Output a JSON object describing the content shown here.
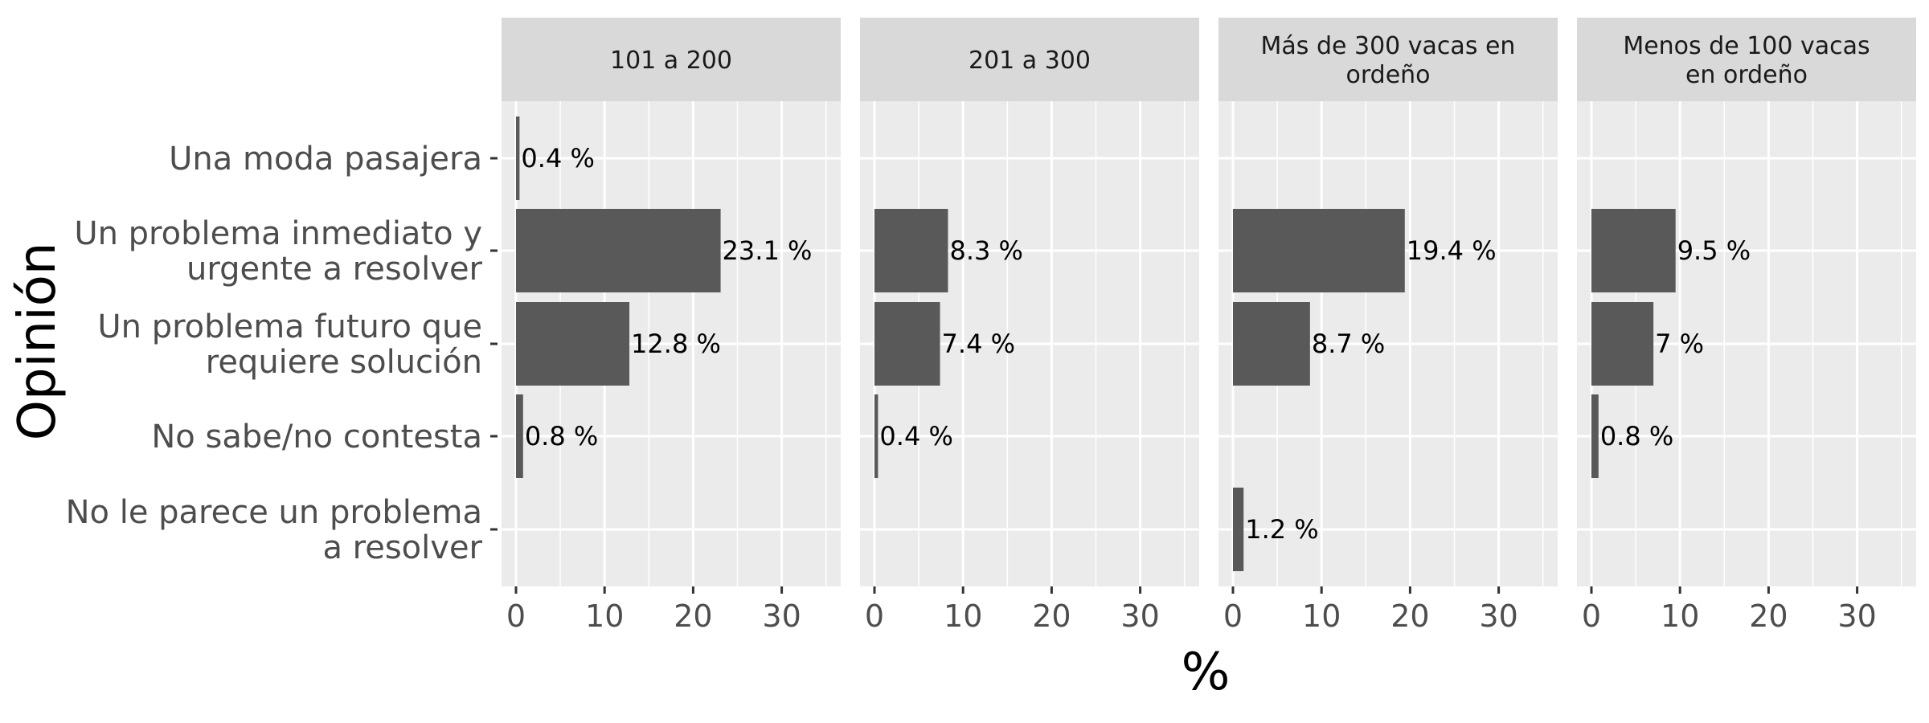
{
  "chart_data": {
    "type": "bar",
    "orientation": "horizontal",
    "xlabel": "%",
    "ylabel": "Opinión",
    "xlim": [
      0,
      35
    ],
    "xticks": [
      0,
      10,
      20,
      30
    ],
    "grid": true,
    "categories": [
      [
        "Una moda pasajera"
      ],
      [
        "Un problema inmediato y",
        "urgente a resolver"
      ],
      [
        "Un problema futuro que",
        "requiere solución"
      ],
      [
        "No sabe/no contesta"
      ],
      [
        "No le parece un problema",
        "a resolver"
      ]
    ],
    "colors": {
      "bar": "#595959",
      "panel": "#ebebeb",
      "strip": "#d9d9d9",
      "grid": "#ffffff"
    },
    "facets": [
      {
        "name": [
          "101 a 200"
        ],
        "values": [
          0.4,
          23.1,
          12.8,
          0.8,
          null
        ],
        "labels": [
          "0.4 %",
          "23.1 %",
          "12.8 %",
          "0.8 %",
          ""
        ]
      },
      {
        "name": [
          "201 a 300"
        ],
        "values": [
          null,
          8.3,
          7.4,
          0.4,
          null
        ],
        "labels": [
          "",
          "8.3 %",
          "7.4 %",
          "0.4 %",
          ""
        ]
      },
      {
        "name": [
          "Más de 300 vacas en",
          "ordeño"
        ],
        "values": [
          null,
          19.4,
          8.7,
          null,
          1.2
        ],
        "labels": [
          "",
          "19.4 %",
          "8.7 %",
          "",
          "1.2 %"
        ]
      },
      {
        "name": [
          "Menos de 100 vacas",
          "en ordeño"
        ],
        "values": [
          null,
          9.5,
          7,
          0.8,
          null
        ],
        "labels": [
          "",
          "9.5 %",
          "7 %",
          "0.8 %",
          ""
        ]
      }
    ]
  }
}
